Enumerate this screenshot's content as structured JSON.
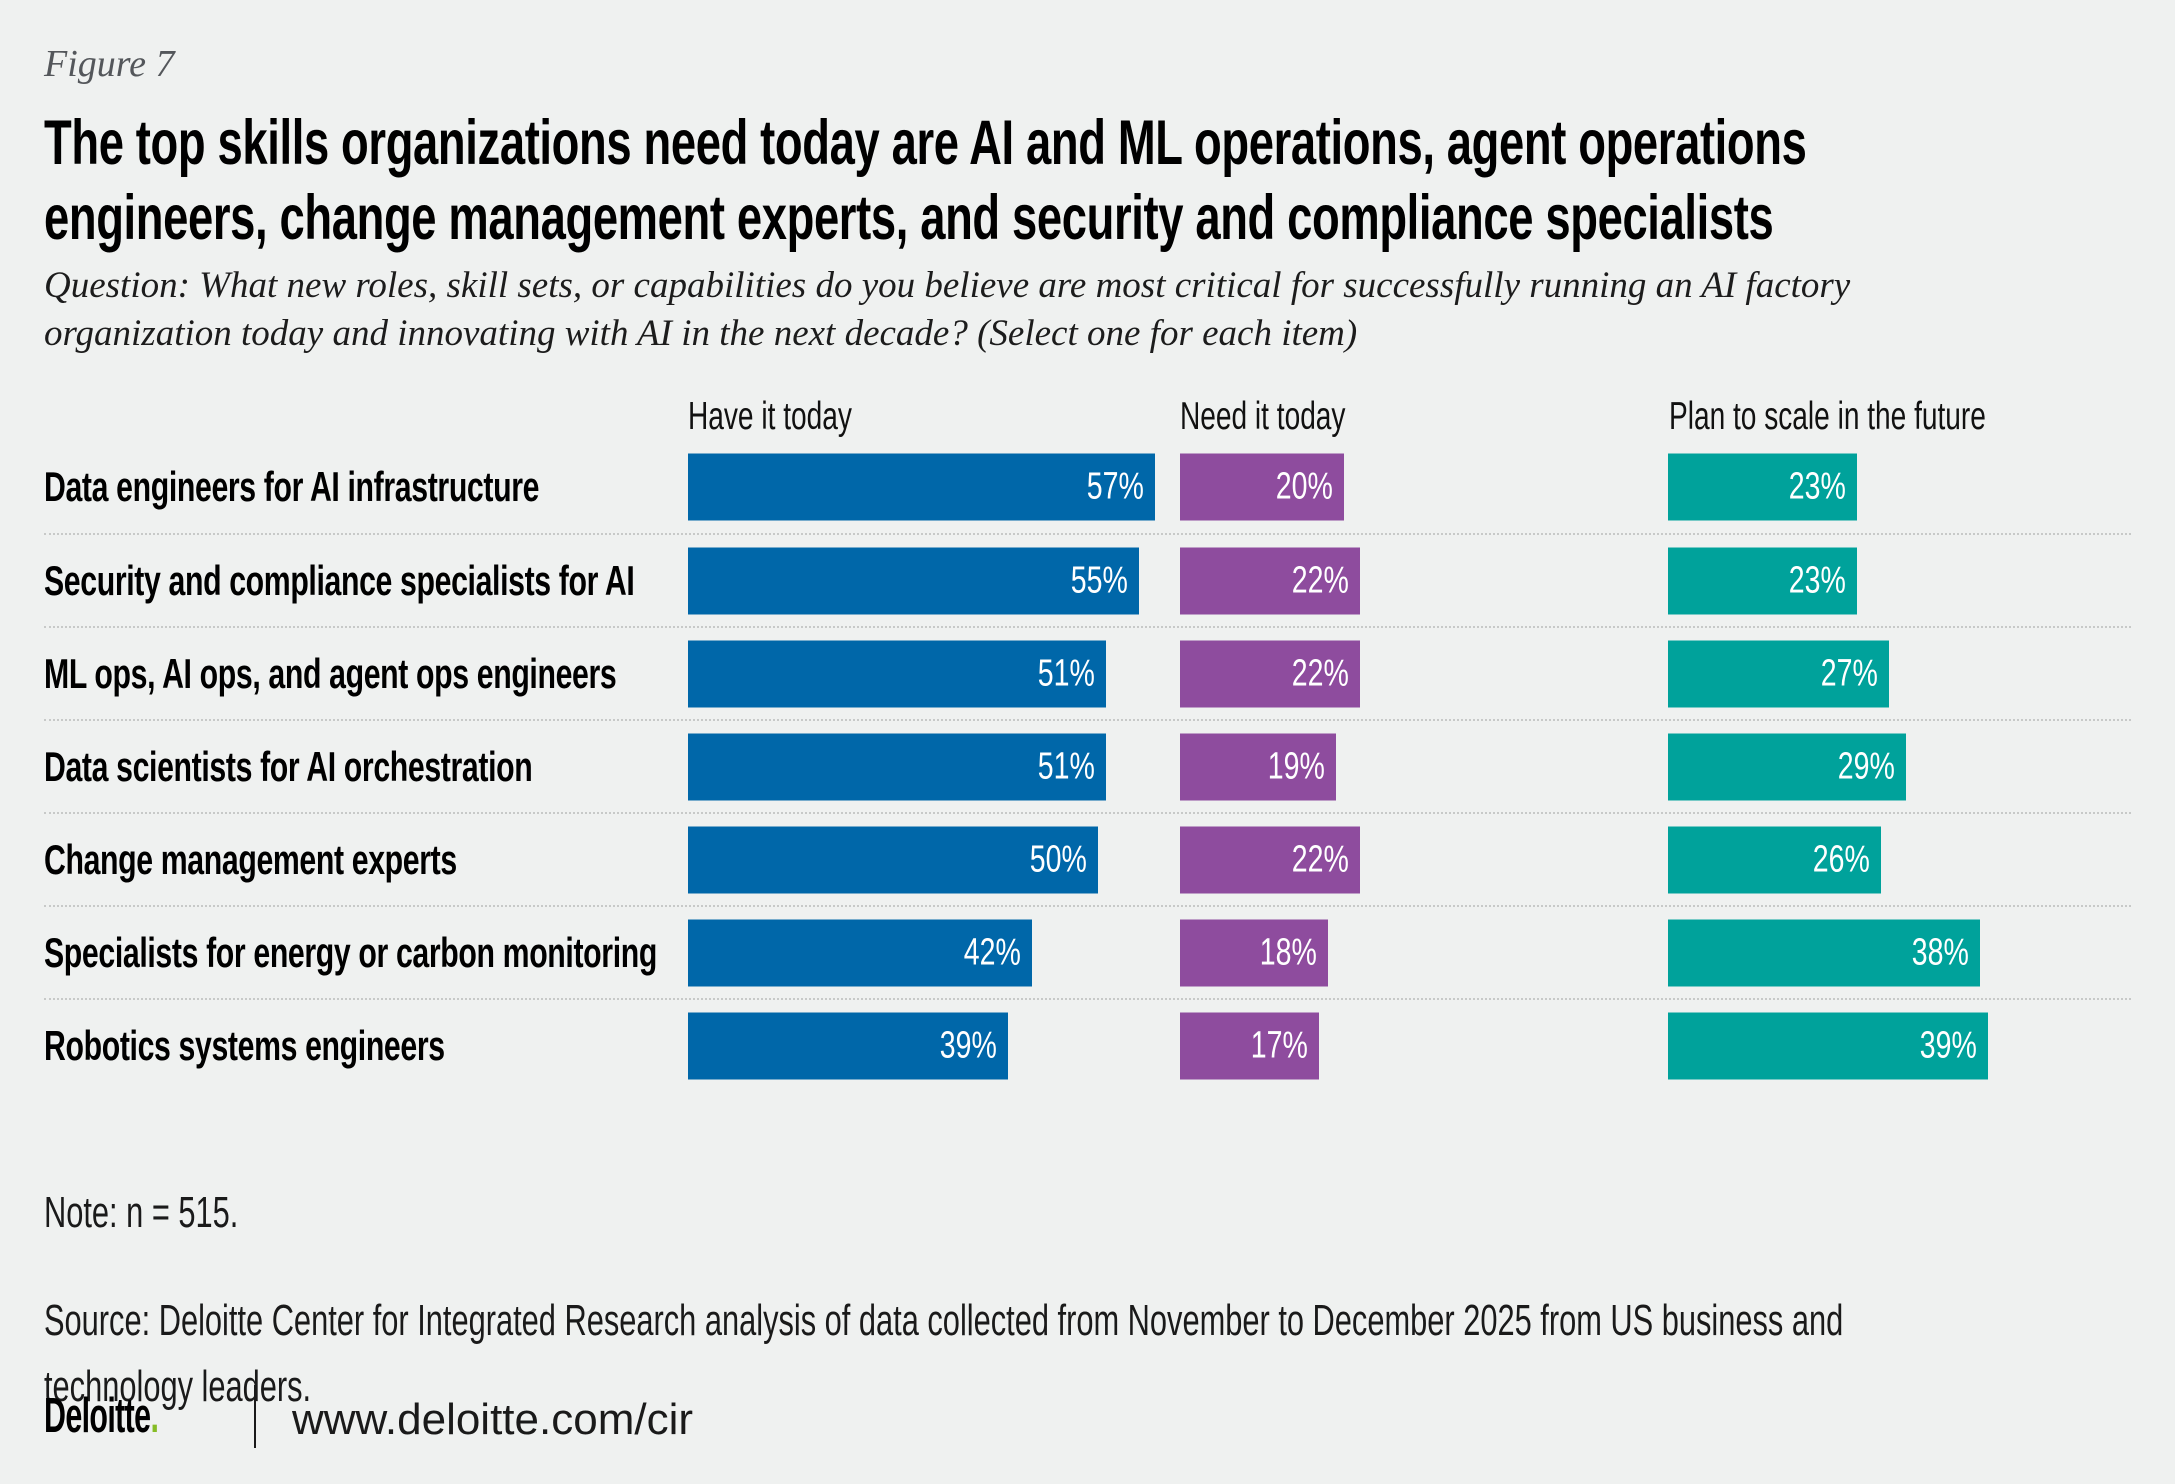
{
  "figure": {
    "label": "Figure 7"
  },
  "title": "The top skills organizations need today are AI and ML operations, agent operations\nengineers, change management experts, and security and compliance specialists",
  "question": "Question: What new roles, skill sets, or capabilities do you believe are most critical for successfully running an AI factory\norganization today and innovating with AI in the next decade? (Select one for each item)",
  "chart_data": {
    "type": "bar",
    "orientation": "horizontal",
    "unit": "%",
    "value_labels": "inside-end",
    "gridlines": false,
    "xlim": [
      0,
      61
    ],
    "categories": [
      "Data engineers for AI infrastructure",
      "Security and compliance specialists for AI",
      "ML ops, AI ops, and agent ops engineers",
      "Data scientists for AI orchestration",
      "Change management experts",
      "Specialists for energy or carbon monitoring",
      "Robotics systems engineers"
    ],
    "series": [
      {
        "name": "Have it today",
        "color": "#0067A9",
        "values": [
          57,
          55,
          51,
          51,
          50,
          42,
          39
        ]
      },
      {
        "name": "Need it today",
        "color": "#8E4C9E",
        "values": [
          20,
          22,
          22,
          19,
          22,
          18,
          17
        ]
      },
      {
        "name": "Plan to scale in the future",
        "color": "#00A29B",
        "values": [
          23,
          23,
          27,
          29,
          26,
          38,
          39
        ]
      }
    ]
  },
  "note": "Note: n = 515.",
  "source": "Source: Deloitte Center for Integrated Research analysis of data collected from November to December 2025 from US business and\ntechnology leaders.",
  "footer": {
    "brand": "Deloitte",
    "brand_dot": ".",
    "url": "www.deloitte.com/cir"
  },
  "colors": {
    "background": "#EFF1F0",
    "brand_green": "#86BC25",
    "separator": "#C7C9C8",
    "bar_value_text": "#FFFFFF"
  }
}
